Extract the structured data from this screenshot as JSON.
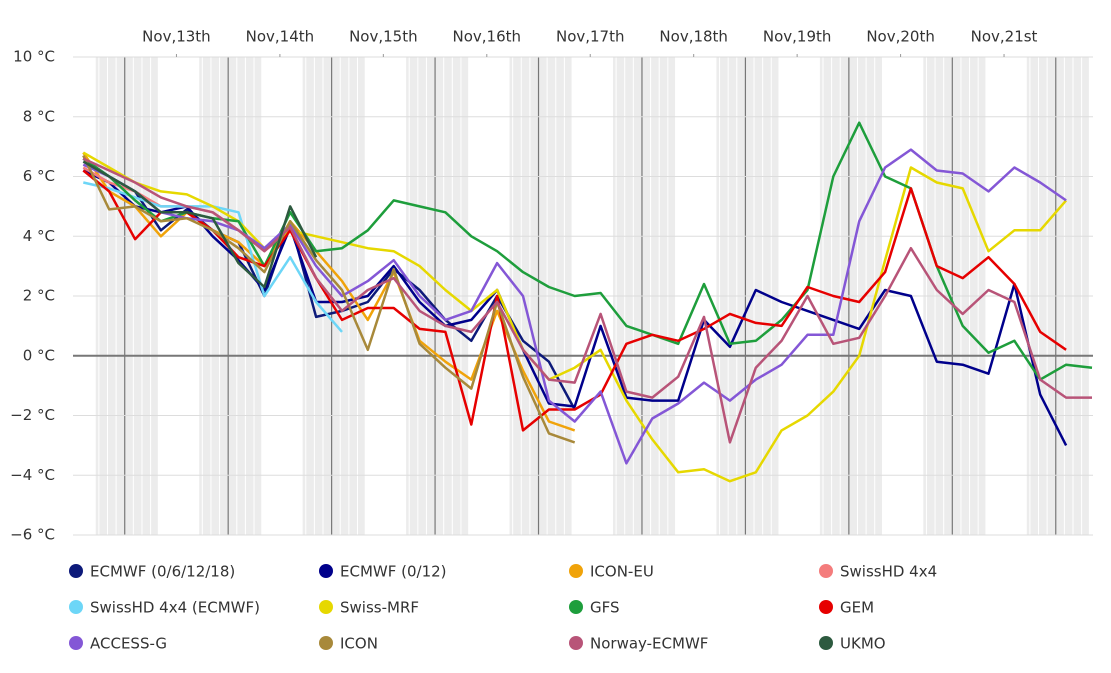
{
  "chart_data": {
    "type": "line",
    "x": [
      0.1,
      0.35,
      0.6,
      0.85,
      1.1,
      1.35,
      1.6,
      1.85,
      2.1,
      2.35,
      2.6,
      2.85,
      3.1,
      3.35,
      3.6,
      3.85,
      4.1,
      4.35,
      4.6,
      4.85,
      5.1,
      5.35,
      5.6,
      5.85,
      6.1,
      6.35,
      6.6,
      6.85,
      7.1,
      7.35,
      7.6,
      7.85,
      8.1,
      8.35,
      8.6,
      8.85,
      9.1,
      9.35,
      9.6,
      9.85
    ],
    "xlim": [
      0,
      9.86
    ],
    "xticks": [
      {
        "value": 1,
        "label": "Nov,13th"
      },
      {
        "value": 2,
        "label": "Nov,14th"
      },
      {
        "value": 3,
        "label": "Nov,15th"
      },
      {
        "value": 4,
        "label": "Nov,16th"
      },
      {
        "value": 5,
        "label": "Nov,17th"
      },
      {
        "value": 6,
        "label": "Nov,18th"
      },
      {
        "value": 7,
        "label": "Nov,19th"
      },
      {
        "value": 8,
        "label": "Nov,20th"
      },
      {
        "value": 9,
        "label": "Nov,21st"
      }
    ],
    "ylim": [
      -6,
      10
    ],
    "yticks": [
      {
        "value": -6,
        "label": "−6 °C"
      },
      {
        "value": -4,
        "label": "−4 °C"
      },
      {
        "value": -2,
        "label": "−2 °C"
      },
      {
        "value": 0,
        "label": "0 °C"
      },
      {
        "value": 2,
        "label": "2 °C"
      },
      {
        "value": 4,
        "label": "4 °C"
      },
      {
        "value": 6,
        "label": "6 °C"
      },
      {
        "value": 8,
        "label": "8 °C"
      },
      {
        "value": 10,
        "label": "10 °C"
      }
    ],
    "grid": true,
    "legend": "bottom",
    "series": [
      {
        "name": "ECMWF (0/6/12/18)",
        "color": "#0d1a7a",
        "values": [
          6.6,
          6.0,
          5.5,
          4.2,
          4.9,
          4.2,
          3.8,
          2.0,
          4.5,
          1.3,
          1.5,
          1.8,
          2.9,
          2.2,
          1.2,
          0.5,
          2.0,
          0.5,
          -0.2,
          -1.8,
          null,
          null,
          null,
          null,
          null,
          null,
          null,
          null,
          null,
          null,
          null,
          null,
          null,
          null,
          null,
          null,
          null,
          null,
          null,
          null
        ]
      },
      {
        "name": "ECMWF (0/12)",
        "color": "#00008b",
        "values": [
          6.2,
          5.8,
          5.0,
          4.8,
          5.0,
          4.0,
          3.2,
          2.2,
          4.3,
          1.8,
          1.8,
          2.0,
          3.0,
          1.8,
          1.0,
          1.2,
          2.2,
          0.2,
          -1.6,
          -1.7,
          1.0,
          -1.4,
          -1.5,
          -1.5,
          1.2,
          0.3,
          2.2,
          1.8,
          1.5,
          1.2,
          0.9,
          2.2,
          2.0,
          -0.2,
          -0.3,
          -0.6,
          2.4,
          -1.3,
          -3.0,
          null
        ]
      },
      {
        "name": "ICON-EU",
        "color": "#f0a30a",
        "values": [
          6.8,
          5.5,
          5.0,
          4.0,
          4.8,
          4.2,
          3.8,
          3.0,
          4.5,
          3.5,
          2.5,
          1.2,
          2.8,
          0.5,
          -0.2,
          -0.8,
          1.5,
          -0.5,
          -2.2,
          -2.5,
          null,
          null,
          null,
          null,
          null,
          null,
          null,
          null,
          null,
          null,
          null,
          null,
          null,
          null,
          null,
          null,
          null,
          null,
          null,
          null
        ]
      },
      {
        "name": "SwissHD 4x4",
        "color": "#f47c7c",
        "values": [
          6.3,
          5.8,
          5.5,
          5.0,
          5.0,
          4.8,
          4.2,
          3.5,
          4.2,
          2.6,
          1.5,
          null,
          null,
          null,
          null,
          null,
          null,
          null,
          null,
          null,
          null,
          null,
          null,
          null,
          null,
          null,
          null,
          null,
          null,
          null,
          null,
          null,
          null,
          null,
          null,
          null,
          null,
          null,
          null,
          null
        ]
      },
      {
        "name": "SwissHD 4x4 (ECMWF)",
        "color": "#6dd6f7",
        "values": [
          5.8,
          5.6,
          5.3,
          5.0,
          5.0,
          5.0,
          4.8,
          2.0,
          3.3,
          1.8,
          0.8,
          null,
          null,
          null,
          null,
          null,
          null,
          null,
          null,
          null,
          null,
          null,
          null,
          null,
          null,
          null,
          null,
          null,
          null,
          null,
          null,
          null,
          null,
          null,
          null,
          null,
          null,
          null,
          null,
          null
        ]
      },
      {
        "name": "Swiss-MRF",
        "color": "#e6d800",
        "values": [
          6.8,
          6.3,
          5.8,
          5.5,
          5.4,
          5.0,
          4.5,
          3.6,
          4.2,
          4.0,
          3.8,
          3.6,
          3.5,
          3.0,
          2.2,
          1.5,
          2.2,
          0.2,
          -0.8,
          -0.4,
          0.2,
          -1.5,
          -2.8,
          -3.9,
          -3.8,
          -4.2,
          -3.9,
          -2.5,
          -2.0,
          -1.2,
          0.0,
          3.2,
          6.3,
          5.8,
          5.6,
          3.5,
          4.2,
          4.2,
          5.2,
          null
        ]
      },
      {
        "name": "GFS",
        "color": "#1e9e3c",
        "values": [
          6.6,
          6.0,
          5.2,
          4.5,
          4.8,
          4.6,
          4.5,
          3.0,
          4.8,
          3.5,
          3.6,
          4.2,
          5.2,
          5.0,
          4.8,
          4.0,
          3.5,
          2.8,
          2.3,
          2.0,
          2.1,
          1.0,
          0.7,
          0.4,
          2.4,
          0.4,
          0.5,
          1.2,
          2.2,
          6.0,
          7.8,
          6.0,
          5.6,
          3.0,
          1.0,
          0.1,
          0.5,
          -0.8,
          -0.3,
          -0.4
        ]
      },
      {
        "name": "GEM",
        "color": "#e60000",
        "values": [
          6.2,
          5.5,
          3.9,
          4.8,
          4.8,
          4.2,
          3.3,
          3.0,
          4.2,
          2.6,
          1.2,
          1.6,
          1.6,
          0.9,
          0.8,
          -2.3,
          2.0,
          -2.5,
          -1.8,
          -1.8,
          -1.3,
          0.4,
          0.7,
          0.5,
          0.9,
          1.4,
          1.1,
          1.0,
          2.3,
          2.0,
          1.8,
          2.8,
          5.6,
          3.0,
          2.6,
          3.3,
          2.4,
          0.8,
          0.2,
          null
        ]
      },
      {
        "name": "ACCESS-G",
        "color": "#8457d6",
        "values": [
          6.4,
          6.0,
          5.5,
          4.8,
          4.6,
          4.5,
          4.2,
          3.6,
          4.4,
          3.0,
          2.0,
          2.5,
          3.2,
          2.0,
          1.2,
          1.5,
          3.1,
          2.0,
          -1.5,
          -2.2,
          -1.2,
          -3.6,
          -2.1,
          -1.6,
          -0.9,
          -1.5,
          -0.8,
          -0.3,
          0.7,
          0.7,
          4.5,
          6.3,
          6.9,
          6.2,
          6.1,
          5.5,
          6.3,
          5.8,
          5.2,
          null
        ]
      },
      {
        "name": "ICON",
        "color": "#a8893a",
        "values": [
          6.7,
          4.9,
          5.0,
          4.5,
          4.6,
          4.2,
          3.6,
          2.8,
          4.5,
          3.2,
          2.2,
          0.2,
          2.9,
          0.4,
          -0.4,
          -1.1,
          1.8,
          -0.7,
          -2.6,
          -2.9,
          null,
          null,
          null,
          null,
          null,
          null,
          null,
          null,
          null,
          null,
          null,
          null,
          null,
          null,
          null,
          null,
          null,
          null,
          null,
          null
        ]
      },
      {
        "name": "Norway-ECMWF",
        "color": "#b85478",
        "values": [
          6.6,
          6.2,
          5.8,
          5.3,
          5.0,
          4.8,
          4.2,
          3.5,
          4.3,
          2.6,
          1.5,
          2.2,
          2.6,
          1.5,
          1.0,
          0.8,
          1.8,
          0.2,
          -0.8,
          -0.9,
          1.4,
          -1.2,
          -1.4,
          -0.7,
          1.3,
          -2.9,
          -0.4,
          0.5,
          2.0,
          0.4,
          0.6,
          2.0,
          3.6,
          2.2,
          1.4,
          2.2,
          1.8,
          -0.8,
          -1.4,
          -1.4
        ]
      },
      {
        "name": "UKMO",
        "color": "#2d5a3f",
        "values": [
          6.5,
          6.0,
          5.5,
          4.8,
          4.8,
          4.6,
          3.1,
          2.3,
          5.0,
          3.3,
          null,
          null,
          null,
          null,
          null,
          null,
          null,
          null,
          null,
          null,
          null,
          null,
          null,
          null,
          null,
          null,
          null,
          null,
          null,
          null,
          null,
          null,
          null,
          null,
          null,
          null,
          null,
          null,
          null,
          null
        ]
      }
    ]
  }
}
